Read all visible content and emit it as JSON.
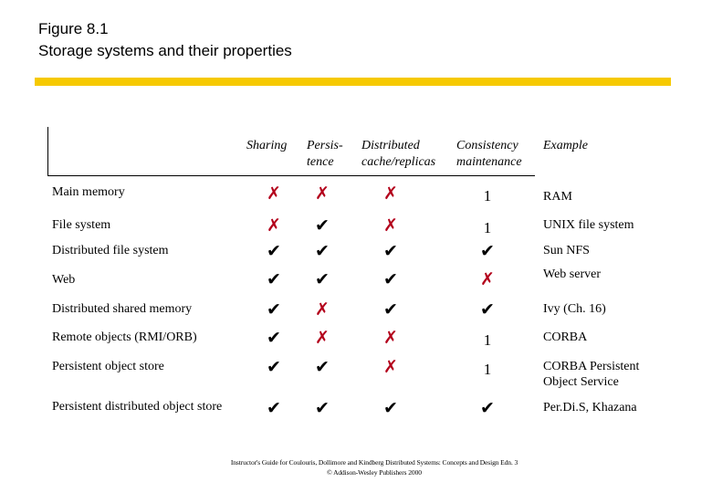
{
  "title": {
    "line1": "Figure 8.1",
    "line2": "Storage systems and their properties"
  },
  "headers": {
    "sharing": "Sharing",
    "persistence_1": "Persis-",
    "persistence_2": "tence",
    "distributed_1": "Distributed",
    "distributed_2": "cache/replicas",
    "consistency_1": "Consistency",
    "consistency_2": "maintenance",
    "example": "Example"
  },
  "rows": [
    {
      "label": "Main memory",
      "sharing": "✗",
      "persistence": "✗",
      "distributed": "✗",
      "consistency": "1",
      "example": "RAM"
    },
    {
      "label": "File system",
      "sharing": "✗",
      "persistence": "✔",
      "distributed": "✗",
      "consistency": "1",
      "example": "UNIX file system"
    },
    {
      "label": "Distributed file system",
      "sharing": "✔",
      "persistence": "✔",
      "distributed": "✔",
      "consistency": "✔",
      "example": "Sun NFS"
    },
    {
      "label": "Web",
      "sharing": "✔",
      "persistence": "✔",
      "distributed": "✔",
      "consistency": "✗",
      "example": "Web server"
    },
    {
      "label": "Distributed shared memory",
      "sharing": "✔",
      "persistence": "✗",
      "distributed": "✔",
      "consistency": "✔",
      "example": "Ivy (Ch. 16)"
    },
    {
      "label": "Remote objects (RMI/ORB)",
      "sharing": "✔",
      "persistence": "✗",
      "distributed": "✗",
      "consistency": "1",
      "example": "CORBA"
    },
    {
      "label": "Persistent object store",
      "sharing": "✔",
      "persistence": "✔",
      "distributed": "✗",
      "consistency": "1",
      "example": "CORBA Persistent\nObject Service"
    },
    {
      "label": "Persistent distributed object store",
      "sharing": "✔",
      "persistence": "✔",
      "distributed": "✔",
      "consistency": "✔",
      "example": "Per.Di.S, Khazana"
    }
  ],
  "footer": {
    "line1": "Instructor's Guide for Coulouris, Dollimore and Kindberg Distributed Systems: Concepts and Design Edn. 3",
    "line2": "© Addison-Wesley Publishers 2000"
  },
  "colors": {
    "accent_bar": "#f6c900",
    "cross": "#b3001b",
    "check": "#000000"
  }
}
